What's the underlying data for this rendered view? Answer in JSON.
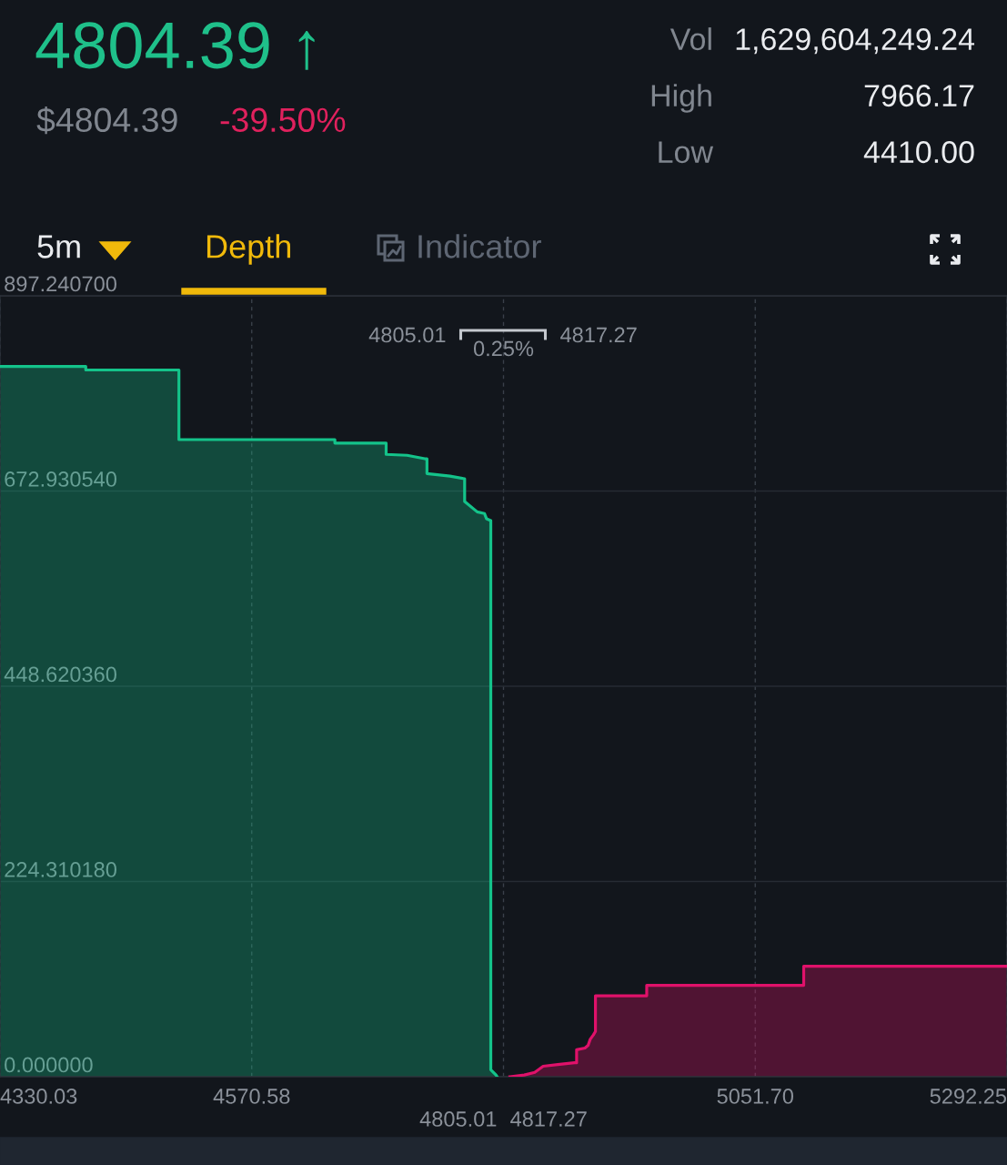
{
  "chart_data": [
    {
      "type": "other",
      "title": "4804.39 ↑",
      "annotations": [
        "$4804.39",
        "-39.50%",
        "Vol",
        "1,629,604,249.24",
        "High",
        "7966.17",
        "Low",
        "4410.00",
        "5m",
        "Depth",
        "Indicator"
      ]
    },
    {
      "type": "area",
      "series": [
        {
          "color": "#14c38a",
          "x": [
            4330.03,
            4412,
            4412,
            4501,
            4501,
            4650,
            4650,
            4699,
            4699,
            4719,
            4736,
            4738,
            4738,
            4760,
            4774,
            4774,
            4786,
            4793,
            4795,
            4799,
            4799,
            4804,
            4805.01
          ],
          "values": [
            816,
            816,
            812,
            812,
            732,
            732,
            728,
            728,
            715,
            714,
            710,
            710,
            693,
            690,
            687,
            661,
            649,
            647,
            641,
            639,
            8,
            2,
            0
          ]
        },
        {
          "color": "#e0116a",
          "x": [
            4817.27,
            4831,
            4841,
            4849,
            4863,
            4879,
            4881,
            4881,
            4889,
            4892,
            4894,
            4897,
            4899,
            4899,
            4948,
            4948,
            5098,
            5098,
            5292.25
          ],
          "values": [
            0,
            2,
            5,
            12,
            14,
            16,
            16,
            31,
            33,
            36,
            43,
            48,
            52,
            93,
            93,
            105,
            105,
            127,
            127
          ]
        }
      ],
      "xlim": [
        4330.03,
        5292.25
      ],
      "xticks": [
        4330.03,
        4570.58,
        {
          "value": 4811.14,
          "label": null
        },
        {
          "value": 5051.7,
          "label": "5051.70"
        },
        5292.25
      ],
      "ylim": [
        0,
        897.2407
      ],
      "yticks": [
        {
          "value": 0,
          "label": "0.000000"
        },
        {
          "value": 224.31018,
          "label": "224.310180"
        },
        {
          "value": 448.62036,
          "label": "448.620360"
        },
        {
          "value": 672.93054,
          "label": "672.930540"
        },
        {
          "value": 897.2407,
          "label": "897.240700"
        }
      ],
      "grid": true,
      "annotations": [
        "4805.01",
        "0.25%",
        "4817.27",
        {
          "text": "4805.01",
          "x": 4805.01,
          "y": 0
        },
        {
          "text": "4817.27",
          "x": 4817.27,
          "y": 0
        }
      ]
    }
  ]
}
